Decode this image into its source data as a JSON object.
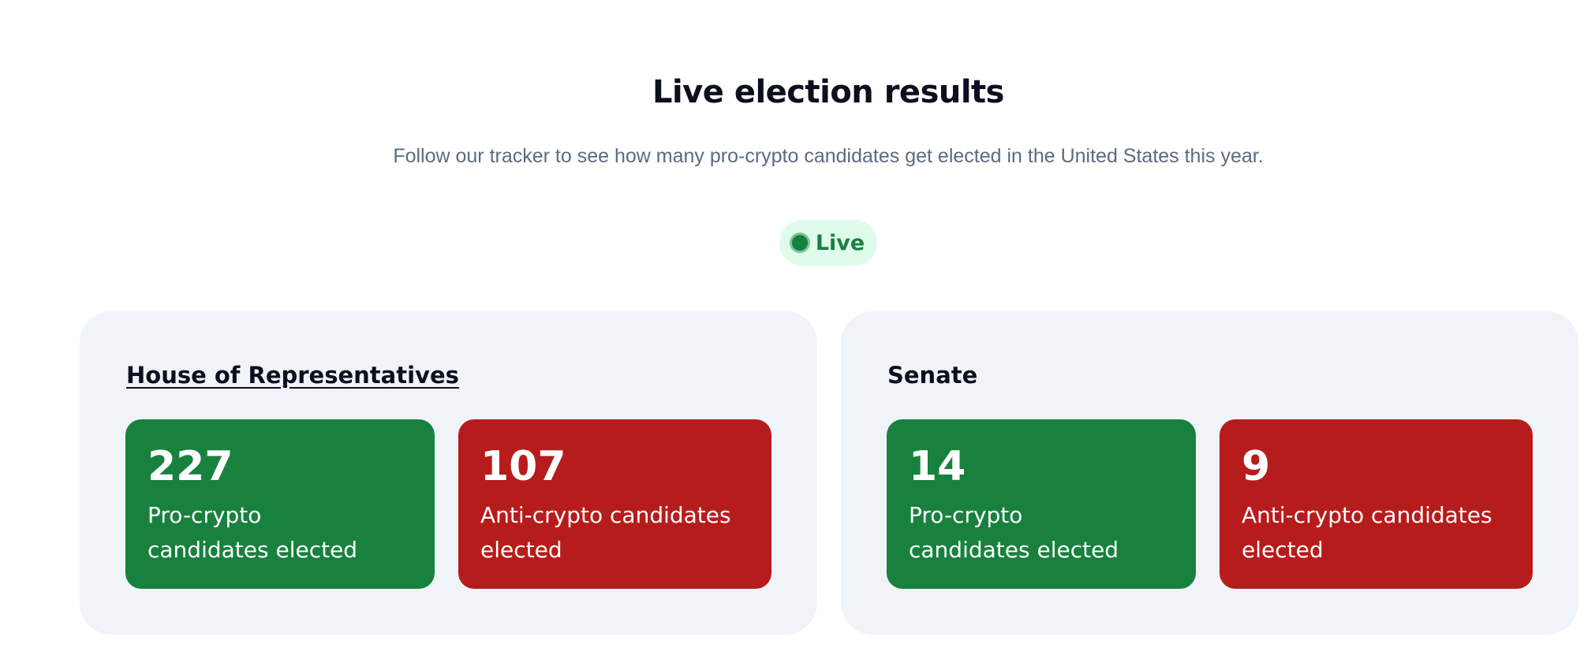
{
  "header": {
    "title": "Live election results",
    "subtitle": "Follow our tracker to see how many pro-crypto candidates get elected in the United States this year."
  },
  "status": {
    "label": "Live",
    "color": "#18813e",
    "icon": "live-dot-icon"
  },
  "colors": {
    "pro": "#18813e",
    "anti": "#b71c1c",
    "card_bg": "#f0f4f9"
  },
  "house": {
    "title": "House of Representatives",
    "pro": {
      "count": "227",
      "label": "Pro-crypto candidates elected"
    },
    "anti": {
      "count": "107",
      "label": "Anti-crypto candidates elected"
    }
  },
  "senate": {
    "title": "Senate",
    "pro": {
      "count": "14",
      "label": "Pro-crypto candidates elected"
    },
    "anti": {
      "count": "9",
      "label": "Anti-crypto candidates elected"
    }
  }
}
